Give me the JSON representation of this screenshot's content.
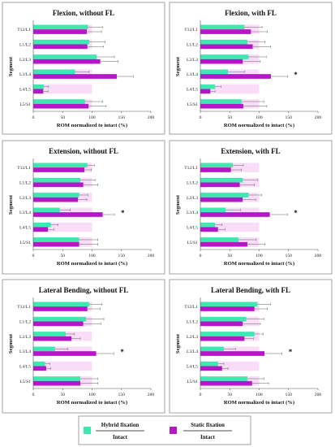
{
  "chart_data": [
    {
      "type": "bar",
      "title": "Flexion, without FL",
      "xlabel": "ROM normalized to intact (%)",
      "ylabel": "Segment",
      "xlim": [
        0,
        200
      ],
      "xticks": [
        0,
        50,
        100,
        150,
        200
      ],
      "categories": [
        "T12/L1",
        "L1/L2",
        "L2/L3",
        "L3/L4",
        "L4/L5",
        "L5/S1"
      ],
      "series": [
        {
          "name": "Hybrid fixation / Intact",
          "values": [
            93,
            95,
            108,
            71,
            18,
            88
          ],
          "errors": [
            25,
            27,
            30,
            24,
            8,
            30
          ]
        },
        {
          "name": "Static fixation / Intact",
          "values": [
            91,
            92,
            114,
            142,
            17,
            94
          ],
          "errors": [
            25,
            27,
            30,
            28,
            8,
            30
          ]
        }
      ],
      "annotations": []
    },
    {
      "type": "bar",
      "title": "Flexion, with FL",
      "xlabel": "ROM normalized to intact (%)",
      "ylabel": "Segment",
      "xlim": [
        0,
        200
      ],
      "xticks": [
        0,
        50,
        100,
        150,
        200
      ],
      "categories": [
        "T12/L1",
        "L1/L2",
        "L2/L3",
        "L3/L4",
        "L4/L5",
        "L5/S1"
      ],
      "series": [
        {
          "name": "Hybrid fixation / Intact",
          "values": [
            75,
            80,
            82,
            47,
            25,
            70
          ],
          "errors": [
            30,
            30,
            30,
            28,
            10,
            38
          ]
        },
        {
          "name": "Static fixation / Intact",
          "values": [
            86,
            89,
            72,
            120,
            17,
            73
          ],
          "errors": [
            28,
            30,
            30,
            28,
            8,
            40
          ]
        }
      ],
      "annotations": [
        {
          "category": "L3/L4",
          "text": "*"
        }
      ]
    },
    {
      "type": "bar",
      "title": "Extension, without FL",
      "xlabel": "ROM normalized to intact (%)",
      "ylabel": "Segment",
      "xlim": [
        0,
        200
      ],
      "xticks": [
        0,
        50,
        100,
        150,
        200
      ],
      "categories": [
        "T12/L1",
        "L1/L2",
        "L2/L3",
        "L3/L4",
        "L4/L5",
        "L5/S1"
      ],
      "series": [
        {
          "name": "Hybrid fixation / Intact",
          "values": [
            92,
            80,
            78,
            45,
            30,
            78
          ],
          "errors": [
            12,
            25,
            15,
            18,
            12,
            32
          ]
        },
        {
          "name": "Static fixation / Intact",
          "values": [
            87,
            85,
            76,
            118,
            25,
            78
          ],
          "errors": [
            12,
            25,
            15,
            20,
            10,
            32
          ]
        }
      ],
      "annotations": [
        {
          "category": "L3/L4",
          "text": "*"
        }
      ]
    },
    {
      "type": "bar",
      "title": "Extension, with FL",
      "xlabel": "ROM normalized to intact (%)",
      "ylabel": "Segment",
      "xlim": [
        0,
        200
      ],
      "xticks": [
        0,
        50,
        100,
        150,
        200
      ],
      "categories": [
        "T12/L1",
        "L1/L2",
        "L2/L3",
        "L3/L4",
        "L4/L5",
        "L5/S1"
      ],
      "series": [
        {
          "name": "Hybrid fixation / Intact",
          "values": [
            55,
            72,
            82,
            43,
            25,
            65
          ],
          "errors": [
            18,
            25,
            22,
            25,
            12,
            30
          ]
        },
        {
          "name": "Static fixation / Intact",
          "values": [
            52,
            67,
            72,
            118,
            30,
            80
          ],
          "errors": [
            18,
            25,
            22,
            30,
            12,
            30
          ]
        }
      ],
      "annotations": [
        {
          "category": "L3/L4",
          "text": "*"
        }
      ]
    },
    {
      "type": "bar",
      "title": "Lateral Bending, without FL",
      "xlabel": "ROM normalized to intact (%)",
      "ylabel": "Segment",
      "xlim": [
        0,
        200
      ],
      "xticks": [
        0,
        50,
        100,
        150,
        200
      ],
      "categories": [
        "T12/L1",
        "L1/L2",
        "L2/L3",
        "L3/L4",
        "L4/L5",
        "L5/S1"
      ],
      "series": [
        {
          "name": "Hybrid fixation / Intact",
          "values": [
            95,
            90,
            55,
            37,
            20,
            80
          ],
          "errors": [
            22,
            30,
            15,
            22,
            8,
            30
          ]
        },
        {
          "name": "Static fixation / Intact",
          "values": [
            92,
            85,
            65,
            107,
            22,
            80
          ],
          "errors": [
            22,
            30,
            15,
            30,
            8,
            30
          ]
        }
      ],
      "annotations": [
        {
          "category": "L3/L4",
          "text": "*"
        }
      ]
    },
    {
      "type": "bar",
      "title": "Lateral Bending, with FL",
      "xlabel": "ROM normalized to intact (%)",
      "ylabel": "Segment",
      "xlim": [
        0,
        200
      ],
      "xticks": [
        0,
        50,
        100,
        150,
        200
      ],
      "categories": [
        "T12/L1",
        "L1/L2",
        "L2/L3",
        "L3/L4",
        "L4/L5",
        "L5/S1"
      ],
      "series": [
        {
          "name": "Hybrid fixation / Intact",
          "values": [
            97,
            78,
            92,
            40,
            30,
            80
          ],
          "errors": [
            22,
            30,
            15,
            20,
            10,
            28
          ]
        },
        {
          "name": "Static fixation / Intact",
          "values": [
            92,
            72,
            75,
            109,
            37,
            88
          ],
          "errors": [
            22,
            30,
            15,
            30,
            10,
            28
          ]
        }
      ],
      "annotations": [
        {
          "category": "L3/L4",
          "text": "*"
        }
      ]
    }
  ],
  "legend": {
    "items": [
      {
        "top": "Hybrid fixation",
        "bottom": "Intact",
        "color": "#3ee8b0"
      },
      {
        "top": "Static fixation",
        "bottom": "Intact",
        "color": "#b416c8"
      }
    ]
  },
  "colors": {
    "hybrid": "#3ee8b0",
    "static": "#b416c8",
    "baseline_fill": "#f4bff0",
    "error_bar": "#666666"
  }
}
